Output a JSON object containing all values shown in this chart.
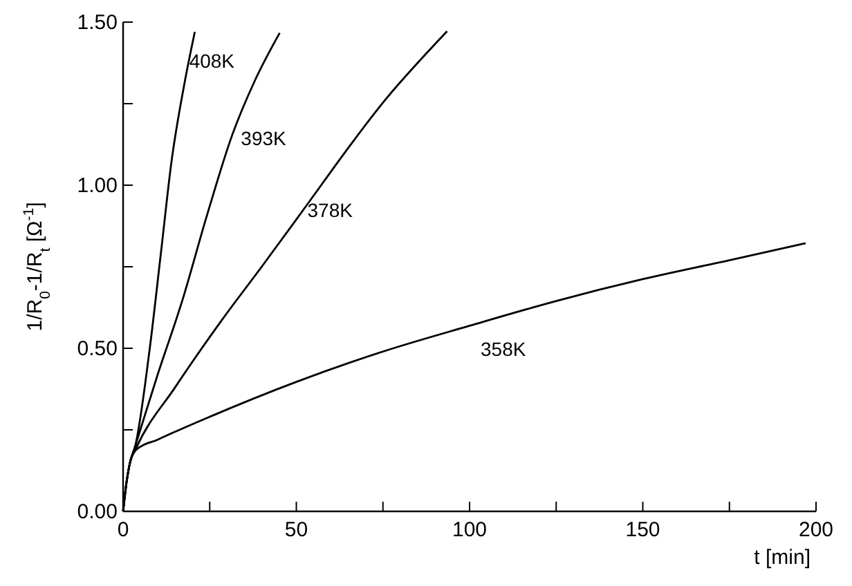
{
  "chart_data": {
    "type": "line",
    "xlabel": "t [min]",
    "ylabel": "1/R$_{0}$-1/R$_{t}$ [Ω$^{-1}$]",
    "xlim": [
      0,
      200
    ],
    "ylim": [
      0,
      1.5
    ],
    "xticks": [
      0,
      {
        "value": 25,
        "label": null
      },
      50,
      {
        "value": 75,
        "label": null
      },
      100,
      {
        "value": 125,
        "label": null
      },
      150,
      {
        "value": 175,
        "label": null
      },
      200
    ],
    "yticks": [
      {
        "value": 0,
        "label": "0.00"
      },
      {
        "value": 0.25,
        "label": null
      },
      {
        "value": 0.5,
        "label": "0.50"
      },
      {
        "value": 0.75,
        "label": null
      },
      {
        "value": 1,
        "label": "1.00"
      },
      {
        "value": 1.25,
        "label": null
      },
      {
        "value": 1.5,
        "label": "1.50"
      }
    ],
    "grid": false,
    "marker": "none",
    "line_style": "solid",
    "series": [
      {
        "name": "408K",
        "color": "#000000",
        "x": [
          0,
          1,
          2,
          3.5,
          7.7,
          11,
          14,
          17.5,
          20.7
        ],
        "values": [
          0,
          0.09,
          0.15,
          0.2,
          0.5,
          0.8,
          1.075,
          1.3,
          1.47
        ]
      },
      {
        "name": "393K",
        "color": "#000000",
        "x": [
          0,
          1,
          2,
          3.5,
          10,
          17.2,
          24,
          31.6,
          38,
          45.2
        ],
        "values": [
          0,
          0.09,
          0.15,
          0.2,
          0.42,
          0.65,
          0.9,
          1.157,
          1.32,
          1.467
        ]
      },
      {
        "name": "378K",
        "color": "#000000",
        "x": [
          0,
          1,
          2,
          3.6,
          15,
          28.4,
          40,
          50,
          76.3,
          93.5
        ],
        "values": [
          0,
          0.09,
          0.15,
          0.19,
          0.38,
          0.585,
          0.75,
          0.895,
          1.27,
          1.472
        ]
      },
      {
        "name": "358K",
        "color": "#000000",
        "x": [
          0,
          1,
          2,
          3.7,
          10,
          25,
          50,
          75,
          100,
          125,
          150,
          175,
          197
        ],
        "values": [
          0,
          0.09,
          0.15,
          0.188,
          0.22,
          0.29,
          0.397,
          0.49,
          0.569,
          0.645,
          0.712,
          0.77,
          0.822
        ]
      }
    ]
  }
}
